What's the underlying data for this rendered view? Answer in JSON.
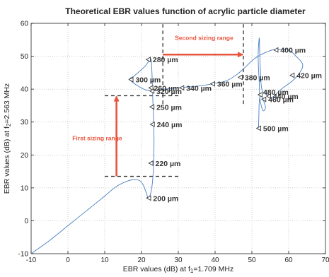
{
  "chart_data": {
    "type": "line",
    "title": "Theoretical EBR values function of acrylic particle diameter",
    "xlabel_main": "EBR values (dB) at f",
    "xlabel_sub": "1",
    "xlabel_rest": "=1.709 MHz",
    "ylabel_main": "EBR values (dB) at f",
    "ylabel_sub": "2",
    "ylabel_rest": "=2.563 MHz",
    "xlim": [
      -10,
      70
    ],
    "ylim": [
      -10,
      60
    ],
    "grid": true,
    "x_ticks": [
      "-10",
      "0",
      "10",
      "20",
      "30",
      "40",
      "50",
      "60",
      "70"
    ],
    "y_ticks": [
      "-10",
      "0",
      "10",
      "20",
      "30",
      "40",
      "50",
      "60"
    ],
    "x_tick_values": [
      -10,
      0,
      10,
      20,
      30,
      40,
      50,
      60,
      70
    ],
    "y_tick_values": [
      -10,
      0,
      10,
      20,
      30,
      40,
      50,
      60
    ],
    "line_color": "#4a7fc1",
    "accent_color": "#e8533c",
    "curve": [
      [
        -10,
        -10
      ],
      [
        -5,
        -6
      ],
      [
        0,
        -1.5
      ],
      [
        5,
        3
      ],
      [
        10,
        7.5
      ],
      [
        13,
        10.3
      ],
      [
        16,
        12
      ],
      [
        18,
        12.5
      ],
      [
        19.5,
        12.2
      ],
      [
        20.5,
        10.8
      ],
      [
        21.3,
        8.5
      ],
      [
        22,
        6.9
      ],
      [
        23,
        12
      ],
      [
        23.4,
        24
      ],
      [
        23.1,
        36
      ],
      [
        22.8,
        46
      ],
      [
        22.5,
        49.2
      ],
      [
        21,
        47
      ],
      [
        18,
        44
      ],
      [
        16.8,
        43
      ],
      [
        19,
        41
      ],
      [
        22,
        39.5
      ],
      [
        26,
        40
      ],
      [
        31,
        40.5
      ],
      [
        36,
        41
      ],
      [
        40,
        41.8
      ],
      [
        43,
        42.5
      ],
      [
        46,
        44.5
      ],
      [
        48.5,
        47
      ],
      [
        51,
        49.5
      ],
      [
        54.5,
        51.5
      ],
      [
        56.5,
        52
      ],
      [
        60,
        51.8
      ],
      [
        62,
        50
      ],
      [
        63.8,
        47.5
      ],
      [
        63,
        45
      ],
      [
        61,
        42.5
      ],
      [
        58,
        40
      ],
      [
        55.5,
        37.5
      ],
      [
        54,
        38.5
      ],
      [
        52.7,
        40
      ],
      [
        52.3,
        46
      ],
      [
        52.1,
        52
      ],
      [
        52,
        55.5
      ],
      [
        51.7,
        50
      ],
      [
        52,
        42
      ],
      [
        52.2,
        37
      ],
      [
        53,
        33.5
      ],
      [
        53.7,
        34.5
      ],
      [
        53,
        37
      ],
      [
        52.4,
        38.5
      ],
      [
        52,
        36
      ],
      [
        51.9,
        32
      ],
      [
        51.8,
        28
      ]
    ],
    "points": [
      {
        "label": "200 µm",
        "x": 22.0,
        "y": 6.9
      },
      {
        "label": "220 µm",
        "x": 22.6,
        "y": 17.5
      },
      {
        "label": "240 µm",
        "x": 23.0,
        "y": 29.3
      },
      {
        "label": "250 µm",
        "x": 22.9,
        "y": 34.6
      },
      {
        "label": "260 µm",
        "x": 22.6,
        "y": 40.4
      },
      {
        "label": "280 µm",
        "x": 21.9,
        "y": 49.0
      },
      {
        "label": "300 µm",
        "x": 17.2,
        "y": 42.9
      },
      {
        "label": "320 µm",
        "x": 22.9,
        "y": 39.4
      },
      {
        "label": "340 µm",
        "x": 31.0,
        "y": 40.4
      },
      {
        "label": "360 µm",
        "x": 39.4,
        "y": 41.6
      },
      {
        "label": "380 µm",
        "x": 46.9,
        "y": 43.6
      },
      {
        "label": "400 µm",
        "x": 56.6,
        "y": 51.9
      },
      {
        "label": "420 µm",
        "x": 61.0,
        "y": 44.2
      },
      {
        "label": "440 µm",
        "x": 54.6,
        "y": 37.9
      },
      {
        "label": "460 µm",
        "x": 53.3,
        "y": 36.9
      },
      {
        "label": "480 µm",
        "x": 52.3,
        "y": 38.3
      },
      {
        "label": "500 µm",
        "x": 51.9,
        "y": 28.1
      }
    ],
    "label_offsets": {
      "200 µm": [
        6,
        4
      ],
      "220 µm": [
        6,
        4
      ],
      "240 µm": [
        6,
        4
      ],
      "250 µm": [
        6,
        4
      ],
      "260 µm": [
        4,
        4
      ],
      "280 µm": [
        6,
        4
      ],
      "300 µm": [
        6,
        4
      ],
      "320 µm": [
        6,
        4
      ],
      "340 µm": [
        6,
        4
      ],
      "360 µm": [
        6,
        4
      ],
      "380 µm": [
        6,
        4
      ],
      "400 µm": [
        6,
        4
      ],
      "420 µm": [
        6,
        4
      ],
      "440 µm": [
        6,
        4
      ],
      "460 µm": [
        6,
        4
      ],
      "480 µm": [
        4,
        0
      ],
      "500 µm": [
        6,
        4
      ]
    },
    "first_range": {
      "label": "First sizing range",
      "y_low": 13.5,
      "y_high": 38,
      "x_start": 10,
      "x_end": 30,
      "arrow_x": 13.2,
      "label_x": 1.2,
      "label_y": 24.5
    },
    "second_range": {
      "label": "Second sizing range",
      "x_low": 25.8,
      "x_high": 47.7,
      "y_start": 35.5,
      "y_end": 60,
      "arrow_y": 50.5,
      "label_x": 37,
      "label_y": 55
    }
  }
}
